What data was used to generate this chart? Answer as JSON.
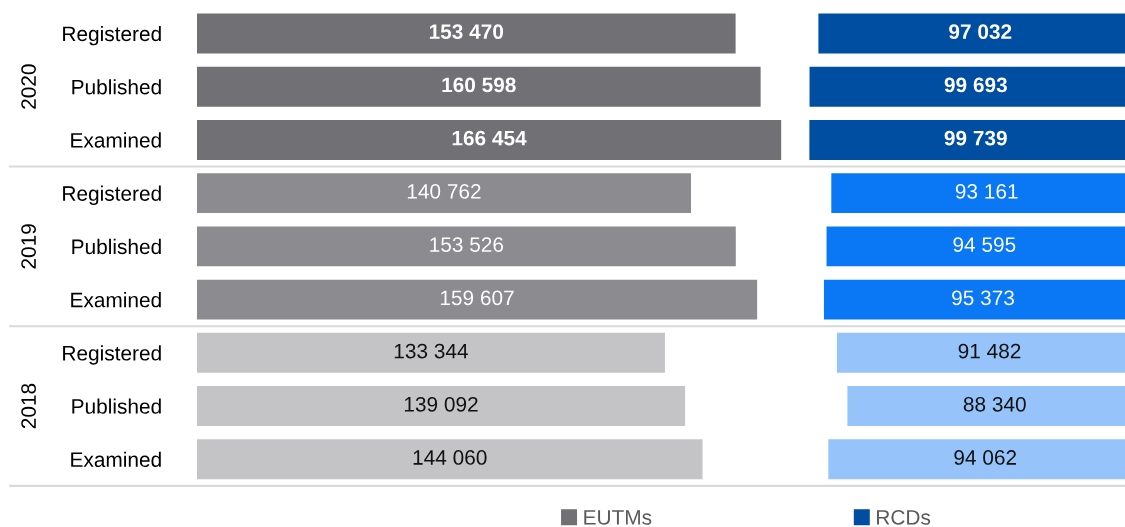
{
  "chart_data": [
    {
      "type": "bar",
      "orientation": "horizontal",
      "categories": [
        "Registered",
        "Published",
        "Examined",
        "Registered",
        "Published",
        "Examined",
        "Registered",
        "Published",
        "Examined"
      ],
      "series": [
        {
          "name": "EUTMs",
          "color": "#707075",
          "colors": [
            "#707075",
            "#707075",
            "#707075",
            "#8c8b90",
            "#8c8b90",
            "#8c8b90",
            "#c4c4c6",
            "#c4c4c6",
            "#c4c4c6"
          ],
          "values": [
            153470,
            160598,
            166454,
            140762,
            153526,
            159607,
            133344,
            139092,
            144060
          ],
          "value_labels": [
            "153 470",
            "160 598",
            "166 454",
            "140 762",
            "153 526",
            "159 607",
            "133 344",
            "139 092",
            "144 060"
          ]
        }
      ],
      "tick_labels": "y",
      "legend": "bottom",
      "annotations": [
        "2020",
        "2019",
        "2018"
      ]
    },
    {
      "type": "bar",
      "orientation": "horizontal",
      "categories": [
        null,
        null,
        null,
        null,
        null,
        null,
        null,
        null,
        null
      ],
      "series": [
        {
          "name": "RCDs",
          "color": "#004ea2",
          "colors": [
            "#004ea2",
            "#004ea2",
            "#004ea2",
            "#0a78f5",
            "#0a78f5",
            "#0a78f5",
            "#96c4fa",
            "#96c4fa",
            "#96c4fa"
          ],
          "values": [
            97032,
            99693,
            99739,
            93161,
            94595,
            95373,
            91482,
            88340,
            94062
          ],
          "value_labels": [
            "97 032",
            "99 693",
            "99 739",
            "93 161",
            "94 595",
            "95 373",
            "91 482",
            "88 340",
            "94 062"
          ]
        }
      ],
      "legend": "bottom"
    }
  ]
}
